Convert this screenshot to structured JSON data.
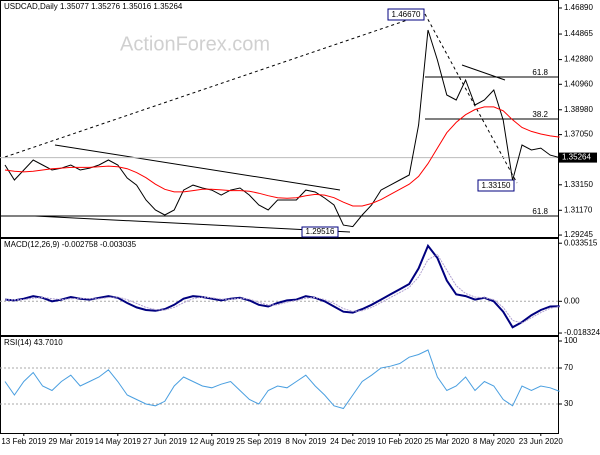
{
  "header": "USDCAD,Daily  1.35077 1.35276 1.35016 1.35264",
  "watermark": "ActionForex.com",
  "annotations": [
    "1.46670",
    "1.29516",
    "1.33150"
  ],
  "fib_labels": [
    "61.8",
    "38.2",
    "61.8"
  ],
  "chart_data": [
    {
      "type": "line",
      "panel": "price",
      "categories": [
        null,
        null,
        "13 Feb 2019",
        null,
        null,
        null,
        null,
        "29 Mar 2019",
        null,
        null,
        null,
        null,
        "14 May 2019",
        null,
        null,
        null,
        null,
        "27 Jun 2019",
        null,
        null,
        null,
        null,
        "12 Aug 2019",
        null,
        null,
        null,
        null,
        "25 Sep 2019",
        null,
        null,
        null,
        null,
        "8 Nov 2019",
        null,
        null,
        null,
        null,
        "24 Dec 2019",
        null,
        null,
        null,
        null,
        "10 Feb 2020",
        null,
        null,
        null,
        null,
        "25 Mar 2020",
        null,
        null,
        null,
        null,
        "8 May 2020",
        null,
        null,
        null,
        null,
        "23 Jun 2020",
        null,
        null
      ],
      "series": [
        {
          "name": "USDCAD",
          "color": "#000000",
          "values": [
            1.3469,
            1.3352,
            1.343,
            1.3508,
            1.3469,
            1.343,
            1.3445,
            1.3469,
            1.343,
            1.3445,
            1.3469,
            1.3508,
            1.3469,
            1.3368,
            1.3313,
            1.3197,
            1.3119,
            1.308,
            1.3119,
            1.3274,
            1.3313,
            1.329,
            1.3274,
            1.3235,
            1.3274,
            1.329,
            1.3235,
            1.3158,
            1.3119,
            1.3197,
            1.3197,
            1.3197,
            1.3274,
            1.3259,
            1.3212,
            1.3158,
            1.3002,
            1.299,
            1.308,
            1.3158,
            1.3274,
            1.3313,
            1.3352,
            1.3391,
            1.378,
            1.4518,
            1.4285,
            1.4013,
            1.3974,
            1.4129,
            1.3935,
            1.3974,
            1.4052,
            1.3818,
            1.335,
            1.3624,
            1.3585,
            1.36,
            1.3546,
            1.3526
          ]
        },
        {
          "name": "MA",
          "color": "#ff0000",
          "values": [
            1.343,
            1.342,
            1.3415,
            1.342,
            1.343,
            1.344,
            1.3445,
            1.345,
            1.345,
            1.345,
            1.3455,
            1.346,
            1.3455,
            1.344,
            1.341,
            1.337,
            1.332,
            1.328,
            1.326,
            1.326,
            1.327,
            1.328,
            1.328,
            1.3275,
            1.327,
            1.327,
            1.3265,
            1.325,
            1.323,
            1.3215,
            1.321,
            1.3215,
            1.323,
            1.324,
            1.3235,
            1.3215,
            1.318,
            1.315,
            1.315,
            1.317,
            1.32,
            1.324,
            1.328,
            1.332,
            1.338,
            1.348,
            1.36,
            1.372,
            1.38,
            1.386,
            1.39,
            1.392,
            1.392,
            1.389,
            1.382,
            1.376,
            1.373,
            1.371,
            1.3695,
            1.3686
          ]
        }
      ],
      "ylim": [
        1.2886,
        1.4751
      ],
      "yticks": [
        {
          "value": 1.4689,
          "label": "1.46890"
        },
        {
          "value": 1.44865,
          "label": "1.44865"
        },
        {
          "value": 1.4288,
          "label": "1.42880"
        },
        {
          "value": 1.4096,
          "label": "1.40960"
        },
        {
          "value": 1.3898,
          "label": "1.38980"
        },
        {
          "value": 1.3705,
          "label": "1.37050"
        },
        {
          "value": 1.3315,
          "label": "1.33150"
        },
        {
          "value": 1.3117,
          "label": "1.31170"
        },
        {
          "value": 1.29245,
          "label": "1.29245"
        }
      ],
      "current_price": {
        "value": 1.35264,
        "label": "1.35264"
      }
    },
    {
      "type": "line",
      "panel": "macd",
      "title": "MACD(12,26,9) -0.002758 -0.003035",
      "series": [
        {
          "name": "MACD",
          "color": "#00007f",
          "values": [
            0.001,
            0.0005,
            0.0015,
            0.003,
            0.002,
            0.0,
            0.001,
            0.0025,
            0.0015,
            0.001,
            0.002,
            0.003,
            0.002,
            -0.001,
            -0.0035,
            -0.005,
            -0.0055,
            -0.0045,
            -0.002,
            0.0015,
            0.003,
            0.0025,
            0.0015,
            0.0005,
            0.0015,
            0.002,
            0.0005,
            -0.002,
            -0.003,
            -0.001,
            0.0005,
            0.001,
            0.003,
            0.002,
            0.0,
            -0.003,
            -0.006,
            -0.0065,
            -0.0045,
            -0.002,
            0.001,
            0.004,
            0.007,
            0.01,
            0.019,
            0.032,
            0.025,
            0.012,
            0.004,
            0.003,
            0.001,
            0.002,
            0.0,
            -0.006,
            -0.015,
            -0.012,
            -0.008,
            -0.005,
            -0.003,
            -0.0028
          ]
        },
        {
          "name": "Signal",
          "color": "#b0a0d0",
          "values": [
            0.0008,
            0.0008,
            0.001,
            0.0018,
            0.0022,
            0.0015,
            0.001,
            0.0015,
            0.0018,
            0.0015,
            0.0015,
            0.0022,
            0.0025,
            0.001,
            -0.0012,
            -0.0035,
            -0.0048,
            -0.005,
            -0.0035,
            -0.0008,
            0.0015,
            0.0025,
            0.002,
            0.0012,
            0.0012,
            0.0018,
            0.0012,
            -0.0005,
            -0.0022,
            -0.002,
            -0.0005,
            0.0005,
            0.0018,
            0.0022,
            0.001,
            -0.0012,
            -0.0042,
            -0.0058,
            -0.0055,
            -0.0035,
            -0.0008,
            0.0022,
            0.005,
            0.008,
            0.014,
            0.024,
            0.027,
            0.018,
            0.009,
            0.0045,
            0.0025,
            0.002,
            0.001,
            -0.0035,
            -0.011,
            -0.0125,
            -0.0095,
            -0.0065,
            -0.004,
            -0.003
          ]
        }
      ],
      "ylim": [
        -0.0206,
        0.0371
      ],
      "yticks": [
        {
          "value": 0.033515,
          "label": "0.033515"
        },
        {
          "value": 0,
          "label": "0.00"
        },
        {
          "value": -0.018324,
          "label": "-0.018324"
        }
      ]
    },
    {
      "type": "line",
      "panel": "rsi",
      "title": "RSI(14) 43.7010",
      "series": [
        {
          "name": "RSI",
          "color": "#4a9fe0",
          "values": [
            55,
            40,
            55,
            65,
            50,
            45,
            55,
            62,
            50,
            55,
            60,
            68,
            55,
            40,
            35,
            30,
            28,
            33,
            50,
            60,
            55,
            50,
            48,
            52,
            55,
            45,
            35,
            30,
            45,
            50,
            48,
            55,
            62,
            50,
            40,
            28,
            25,
            40,
            55,
            62,
            70,
            72,
            75,
            82,
            85,
            90,
            60,
            45,
            50,
            60,
            45,
            55,
            50,
            35,
            28,
            50,
            45,
            50,
            48,
            44
          ]
        }
      ],
      "ylim": [
        0,
        100
      ],
      "yticks": [
        100,
        70,
        30
      ]
    }
  ]
}
